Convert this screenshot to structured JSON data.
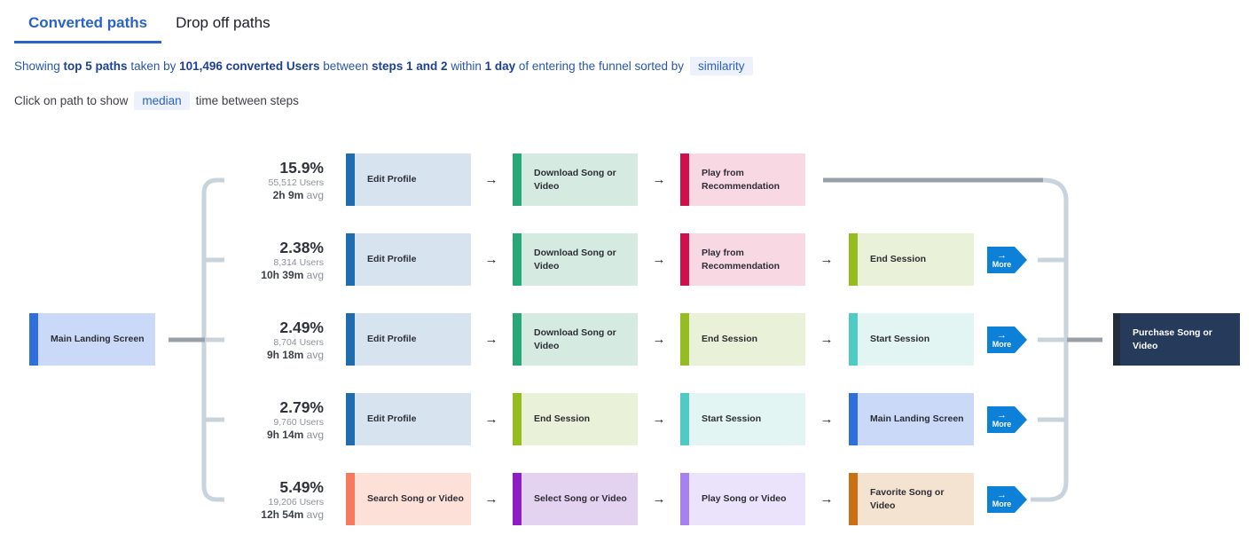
{
  "tabs": [
    {
      "label": "Converted paths",
      "active": true
    },
    {
      "label": "Drop off paths",
      "active": false
    }
  ],
  "summary": {
    "segments": [
      {
        "text": "Showing ",
        "bold": false
      },
      {
        "text": "top 5 paths",
        "bold": true
      },
      {
        "text": " taken by ",
        "bold": false
      },
      {
        "text": "101,496 converted Users",
        "bold": true
      },
      {
        "text": " between ",
        "bold": false
      },
      {
        "text": "steps 1 and 2",
        "bold": true
      },
      {
        "text": " within ",
        "bold": false
      },
      {
        "text": "1 day",
        "bold": true
      },
      {
        "text": " of entering the funnel sorted by",
        "bold": false
      }
    ],
    "sort_pill": "similarity"
  },
  "note": {
    "prefix": "Click on path to show",
    "pill": "median",
    "suffix": "time between steps"
  },
  "accent_color": "#2a63c8",
  "diagram": {
    "source": {
      "label": "Main Landing Screen",
      "style": "main-landing"
    },
    "target": {
      "label": "Purchase Song or Video",
      "style": "purchase"
    },
    "arrow_glyph": "→",
    "more_button": {
      "label": "More",
      "arrow": "→",
      "color": "#0d80d8"
    },
    "connector_colors": {
      "light": "#c9d3db",
      "dark": "#9aa0a7"
    },
    "node_styles": {
      "edit-profile": {
        "bar": "#1f6cae",
        "body": "#d7e3ee"
      },
      "download-song": {
        "bar": "#2aa779",
        "body": "#d5eae1"
      },
      "play-recommendation": {
        "bar": "#d0104c",
        "body": "#f8d8e2"
      },
      "end-session": {
        "bar": "#95bd20",
        "body": "#e9f1d8"
      },
      "start-session": {
        "bar": "#4ecbc4",
        "body": "#e2f5f3"
      },
      "main-landing": {
        "bar": "#2f6fdd",
        "body": "#c9d9f7"
      },
      "search-song": {
        "bar": "#f67a5e",
        "body": "#fde1d8"
      },
      "select-song": {
        "bar": "#8c1ec4",
        "body": "#e4d2f1"
      },
      "play-song": {
        "bar": "#a980f2",
        "body": "#ebe3fc"
      },
      "favorite-song": {
        "bar": "#ca6f14",
        "body": "#f4e3d0"
      },
      "purchase": {
        "bar": "#222c3b",
        "body": "#263a5c",
        "text": "#ffffff"
      }
    },
    "paths": [
      {
        "pct": "15.9%",
        "users": "55,512 Users",
        "avg": "2h 9m",
        "avg_suffix": "avg",
        "more": false,
        "steps": [
          {
            "label": "Edit Profile",
            "style": "edit-profile"
          },
          {
            "label": "Download Song or Video",
            "style": "download-song"
          },
          {
            "label": "Play from Recommendation",
            "style": "play-recommendation"
          }
        ]
      },
      {
        "pct": "2.38%",
        "users": "8,314 Users",
        "avg": "10h 39m",
        "avg_suffix": "avg",
        "more": true,
        "steps": [
          {
            "label": "Edit Profile",
            "style": "edit-profile"
          },
          {
            "label": "Download Song or Video",
            "style": "download-song"
          },
          {
            "label": "Play from Recommendation",
            "style": "play-recommendation"
          },
          {
            "label": "End Session",
            "style": "end-session"
          }
        ]
      },
      {
        "pct": "2.49%",
        "users": "8,704 Users",
        "avg": "9h 18m",
        "avg_suffix": "avg",
        "more": true,
        "steps": [
          {
            "label": "Edit Profile",
            "style": "edit-profile"
          },
          {
            "label": "Download Song or Video",
            "style": "download-song"
          },
          {
            "label": "End Session",
            "style": "end-session"
          },
          {
            "label": "Start Session",
            "style": "start-session"
          }
        ]
      },
      {
        "pct": "2.79%",
        "users": "9,760 Users",
        "avg": "9h 14m",
        "avg_suffix": "avg",
        "more": true,
        "steps": [
          {
            "label": "Edit Profile",
            "style": "edit-profile"
          },
          {
            "label": "End Session",
            "style": "end-session"
          },
          {
            "label": "Start Session",
            "style": "start-session"
          },
          {
            "label": "Main Landing Screen",
            "style": "main-landing"
          }
        ]
      },
      {
        "pct": "5.49%",
        "users": "19,206 Users",
        "avg": "12h 54m",
        "avg_suffix": "avg",
        "more": true,
        "steps": [
          {
            "label": "Search Song or Video",
            "style": "search-song"
          },
          {
            "label": "Select Song or Video",
            "style": "select-song"
          },
          {
            "label": "Play Song or Video",
            "style": "play-song"
          },
          {
            "label": "Favorite Song or Video",
            "style": "favorite-song"
          }
        ]
      }
    ]
  }
}
